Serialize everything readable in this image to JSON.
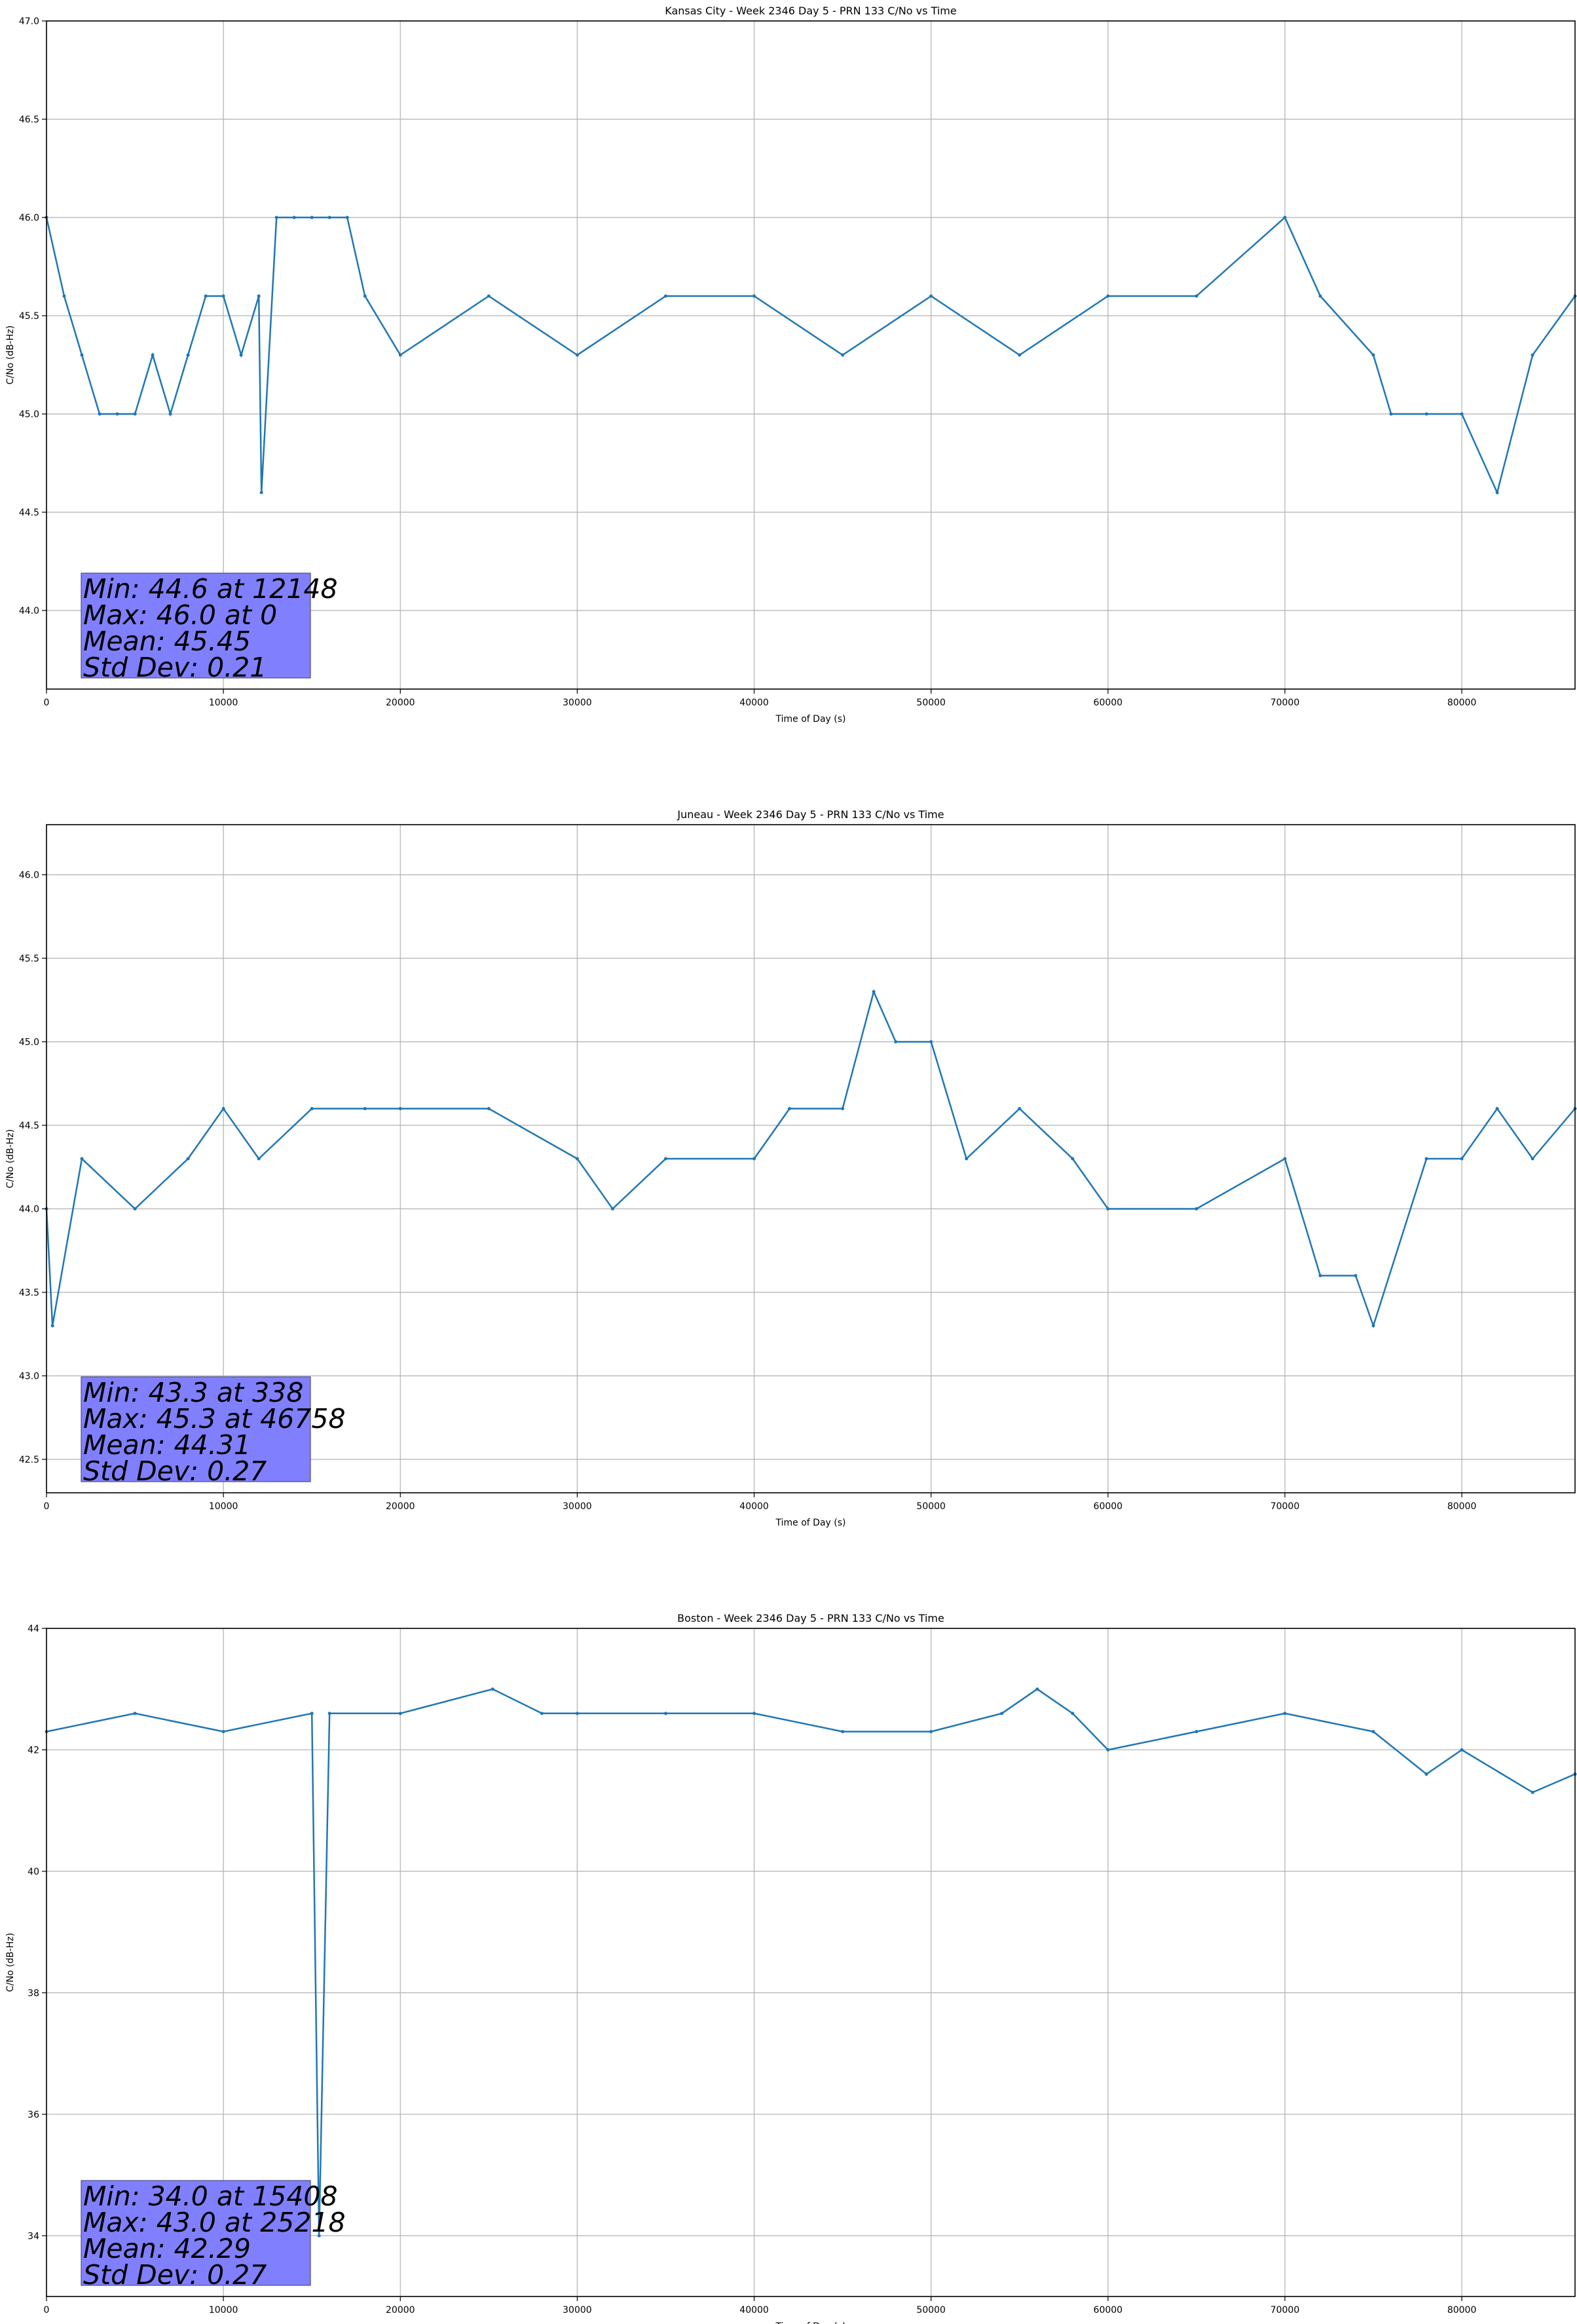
{
  "chart_data": [
    {
      "type": "line",
      "title": "Kansas City - Week 2346 Day 5 - PRN 133 C/No vs Time",
      "xlabel": "Time of Day (s)",
      "ylabel": "C/No (dB-Hz)",
      "xlim": [
        0,
        86400
      ],
      "ylim": [
        43.6,
        47.0
      ],
      "xticks": [
        0,
        10000,
        20000,
        30000,
        40000,
        50000,
        60000,
        70000,
        80000
      ],
      "yticks": [
        44.0,
        44.5,
        45.0,
        45.5,
        46.0,
        46.5,
        47.0
      ],
      "ytick_labels": [
        "44.0",
        "44.5",
        "45.0",
        "45.5",
        "46.0",
        "46.5",
        "47.0"
      ],
      "grid": true,
      "series_color": "#1f77b4",
      "stats_box_color": "#8080ff",
      "stats": [
        "Min: 44.6 at 12148",
        "Max: 46.0 at 0",
        "Mean: 45.45",
        "Std Dev: 0.21"
      ],
      "series": [
        {
          "x": [
            0,
            1000,
            2000,
            3000,
            4000,
            5000,
            6000,
            7000,
            8000,
            9000,
            10000,
            11000,
            12000,
            12148,
            13000,
            14000,
            15000,
            16000,
            17000,
            18000,
            20000,
            25000,
            30000,
            35000,
            40000,
            45000,
            50000,
            55000,
            60000,
            65000,
            70000,
            72000,
            75000,
            76000,
            78000,
            80000,
            82000,
            84000,
            86400
          ],
          "y": [
            46.0,
            45.6,
            45.3,
            45.0,
            45.0,
            45.0,
            45.3,
            45.0,
            45.3,
            45.6,
            45.6,
            45.3,
            45.6,
            44.6,
            46.0,
            46.0,
            46.0,
            46.0,
            46.0,
            45.6,
            45.3,
            45.6,
            45.3,
            45.6,
            45.6,
            45.3,
            45.6,
            45.3,
            45.6,
            45.6,
            46.0,
            45.6,
            45.3,
            45.0,
            45.0,
            45.0,
            44.6,
            45.3,
            45.6
          ]
        }
      ]
    },
    {
      "type": "line",
      "title": "Juneau - Week 2346 Day 5 - PRN 133 C/No vs Time",
      "xlabel": "Time of Day (s)",
      "ylabel": "C/No (dB-Hz)",
      "xlim": [
        0,
        86400
      ],
      "ylim": [
        42.3,
        46.3
      ],
      "xticks": [
        0,
        10000,
        20000,
        30000,
        40000,
        50000,
        60000,
        70000,
        80000
      ],
      "yticks": [
        42.5,
        43.0,
        43.5,
        44.0,
        44.5,
        45.0,
        45.5,
        46.0
      ],
      "ytick_labels": [
        "42.5",
        "43.0",
        "43.5",
        "44.0",
        "44.5",
        "45.0",
        "45.5",
        "46.0"
      ],
      "grid": true,
      "series_color": "#1f77b4",
      "stats_box_color": "#8080ff",
      "stats": [
        "Min: 43.3 at 338",
        "Max: 45.3 at 46758",
        "Mean: 44.31",
        "Std Dev: 0.27"
      ],
      "series": [
        {
          "x": [
            0,
            338,
            2000,
            5000,
            8000,
            10000,
            12000,
            15000,
            18000,
            20000,
            25000,
            30000,
            32000,
            35000,
            40000,
            42000,
            45000,
            46758,
            48000,
            50000,
            52000,
            55000,
            58000,
            60000,
            65000,
            70000,
            72000,
            74000,
            75000,
            78000,
            80000,
            82000,
            84000,
            86400
          ],
          "y": [
            44.0,
            43.3,
            44.3,
            44.0,
            44.3,
            44.6,
            44.3,
            44.6,
            44.6,
            44.6,
            44.6,
            44.3,
            44.0,
            44.3,
            44.3,
            44.6,
            44.6,
            45.3,
            45.0,
            45.0,
            44.3,
            44.6,
            44.3,
            44.0,
            44.0,
            44.3,
            43.6,
            43.6,
            43.3,
            44.3,
            44.3,
            44.6,
            44.3,
            44.6
          ]
        }
      ]
    },
    {
      "type": "line",
      "title": "Boston - Week 2346 Day 5 - PRN 133 C/No vs Time",
      "xlabel": "Time of Day (s)",
      "ylabel": "C/No (dB-Hz)",
      "xlim": [
        0,
        86400
      ],
      "ylim": [
        33.0,
        44.0
      ],
      "xticks": [
        0,
        10000,
        20000,
        30000,
        40000,
        50000,
        60000,
        70000,
        80000
      ],
      "yticks": [
        34,
        36,
        38,
        40,
        42,
        44
      ],
      "ytick_labels": [
        "34",
        "36",
        "38",
        "40",
        "42",
        "44"
      ],
      "grid": true,
      "series_color": "#1f77b4",
      "stats_box_color": "#8080ff",
      "stats": [
        "Min: 34.0 at 15408",
        "Max: 43.0 at 25218",
        "Mean: 42.29",
        "Std Dev: 0.27"
      ],
      "series": [
        {
          "x": [
            0,
            5000,
            10000,
            15000,
            15408,
            16000,
            20000,
            25218,
            28000,
            30000,
            35000,
            40000,
            45000,
            50000,
            54000,
            56000,
            58000,
            60000,
            65000,
            70000,
            75000,
            78000,
            80000,
            84000,
            86400
          ],
          "y": [
            42.3,
            42.6,
            42.3,
            42.6,
            34.0,
            42.6,
            42.6,
            43.0,
            42.6,
            42.6,
            42.6,
            42.6,
            42.3,
            42.3,
            42.6,
            43.0,
            42.6,
            42.0,
            42.3,
            42.6,
            42.3,
            41.6,
            42.0,
            41.3,
            41.6
          ]
        }
      ]
    }
  ]
}
